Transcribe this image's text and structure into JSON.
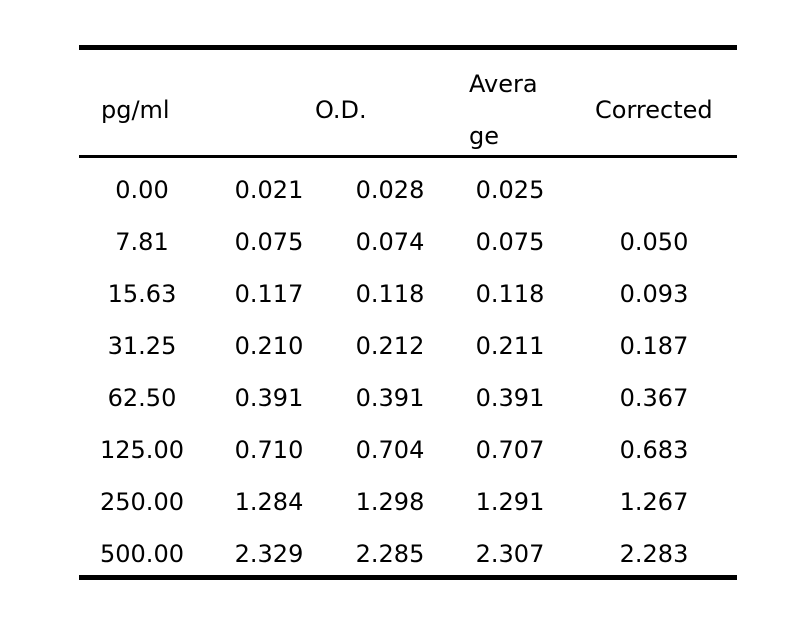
{
  "table": {
    "headers": {
      "pgml": "pg/ml",
      "od": "O.D.",
      "average_line1": "Avera",
      "average_line2": "ge",
      "corrected": "Corrected"
    },
    "rows": [
      {
        "pgml": "0.00",
        "od1": "0.021",
        "od2": "0.028",
        "average": "0.025",
        "corrected": ""
      },
      {
        "pgml": "7.81",
        "od1": "0.075",
        "od2": "0.074",
        "average": "0.075",
        "corrected": "0.050"
      },
      {
        "pgml": "15.63",
        "od1": "0.117",
        "od2": "0.118",
        "average": "0.118",
        "corrected": "0.093"
      },
      {
        "pgml": "31.25",
        "od1": "0.210",
        "od2": "0.212",
        "average": "0.211",
        "corrected": "0.187"
      },
      {
        "pgml": "62.50",
        "od1": "0.391",
        "od2": "0.391",
        "average": "0.391",
        "corrected": "0.367"
      },
      {
        "pgml": "125.00",
        "od1": "0.710",
        "od2": "0.704",
        "average": "0.707",
        "corrected": "0.683"
      },
      {
        "pgml": "250.00",
        "od1": "1.284",
        "od2": "1.298",
        "average": "1.291",
        "corrected": "1.267"
      },
      {
        "pgml": "500.00",
        "od1": "2.329",
        "od2": "2.285",
        "average": "2.307",
        "corrected": "2.283"
      }
    ]
  }
}
